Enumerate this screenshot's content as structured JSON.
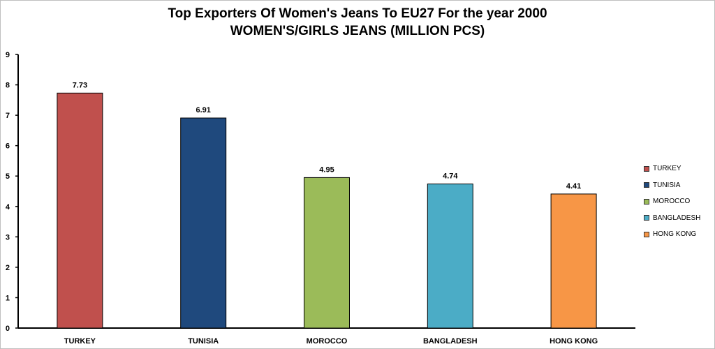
{
  "chart_data": {
    "type": "bar",
    "title": "Top Exporters Of Women's Jeans To EU27 For the year 2000",
    "subtitle": "WOMEN'S/GIRLS  JEANS (MILLION PCS)",
    "xlabel": "",
    "ylabel": "",
    "categories": [
      "TURKEY",
      "TUNISIA",
      "MOROCCO",
      "BANGLADESH",
      "HONG KONG"
    ],
    "values": [
      7.73,
      6.91,
      4.95,
      4.74,
      4.41
    ],
    "value_labels": [
      "7.73",
      "6.91",
      "4.95",
      "4.74",
      "4.41"
    ],
    "colors": [
      "#c0504d",
      "#1f497d",
      "#9bbb59",
      "#4bacc6",
      "#f79646"
    ],
    "ylim": [
      0,
      9
    ],
    "yticks": [
      0,
      1,
      2,
      3,
      4,
      5,
      6,
      7,
      8,
      9
    ],
    "grid": false,
    "legend_position": "right"
  }
}
